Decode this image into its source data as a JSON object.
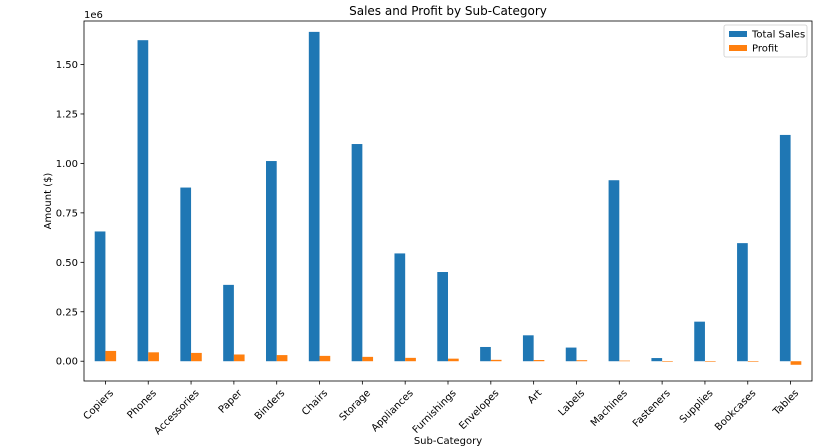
{
  "chart_data": {
    "type": "bar",
    "title": "Sales and Profit by Sub-Category",
    "xlabel": "Sub-Category",
    "ylabel": "Amount ($)",
    "y_offset_label": "1e6",
    "ylim": [
      -0.1,
      1.72
    ],
    "yticks": [
      0.0,
      0.25,
      0.5,
      0.75,
      1.0,
      1.25,
      1.5
    ],
    "ytick_labels": [
      "0.00",
      "0.25",
      "0.50",
      "0.75",
      "1.00",
      "1.25",
      "1.50"
    ],
    "categories": [
      "Copiers",
      "Phones",
      "Accessories",
      "Paper",
      "Binders",
      "Chairs",
      "Storage",
      "Appliances",
      "Furnishings",
      "Envelopes",
      "Art",
      "Labels",
      "Machines",
      "Fasteners",
      "Supplies",
      "Bookcases",
      "Tables"
    ],
    "series": [
      {
        "name": "Total Sales",
        "color": "#1f77b4",
        "values": [
          0.656,
          1.623,
          0.878,
          0.386,
          1.012,
          1.665,
          1.098,
          0.545,
          0.451,
          0.072,
          0.131,
          0.069,
          0.915,
          0.016,
          0.2,
          0.597,
          1.144
        ]
      },
      {
        "name": "Profit",
        "color": "#ff7f0e",
        "values": [
          0.052,
          0.045,
          0.042,
          0.034,
          0.031,
          0.027,
          0.022,
          0.017,
          0.013,
          0.007,
          0.006,
          0.005,
          0.003,
          0.001,
          -0.001,
          -0.003,
          -0.018
        ]
      }
    ],
    "legend_placement": "top-right",
    "grid": false
  }
}
